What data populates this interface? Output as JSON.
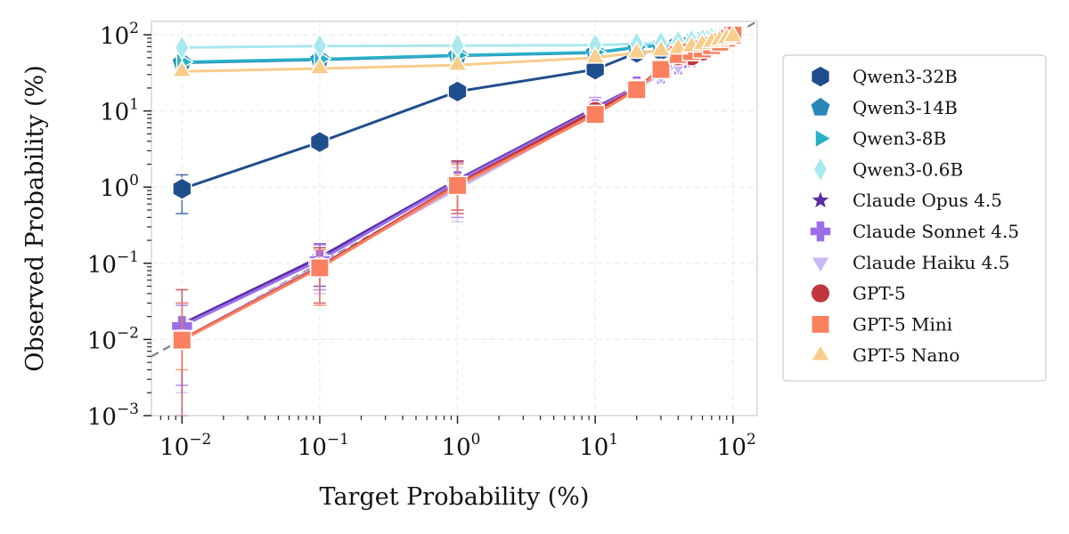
{
  "chart_data": {
    "type": "line",
    "xlabel": "Target Probability (%)",
    "ylabel": "Observed Probability (%)",
    "x_scale": "log",
    "y_scale": "log",
    "xlim": [
      0.006,
      150
    ],
    "ylim": [
      0.001,
      150
    ],
    "x_ticks": [
      {
        "base": "10",
        "exp": "−2",
        "value": 0.01
      },
      {
        "base": "10",
        "exp": "−1",
        "value": 0.1
      },
      {
        "base": "10",
        "exp": "0",
        "value": 1
      },
      {
        "base": "10",
        "exp": "1",
        "value": 10
      },
      {
        "base": "10",
        "exp": "2",
        "value": 100
      }
    ],
    "y_ticks": [
      {
        "base": "10",
        "exp": "−3",
        "value": 0.001
      },
      {
        "base": "10",
        "exp": "−2",
        "value": 0.01
      },
      {
        "base": "10",
        "exp": "−1",
        "value": 0.1
      },
      {
        "base": "10",
        "exp": "0",
        "value": 1
      },
      {
        "base": "10",
        "exp": "1",
        "value": 10
      },
      {
        "base": "10",
        "exp": "2",
        "value": 100
      }
    ],
    "grid": true,
    "legend_position": "outside-right",
    "reference_line": "y = x (dashed gray)",
    "x": [
      0.01,
      0.1,
      1,
      10,
      20,
      30,
      40,
      50,
      60,
      70,
      80,
      90,
      100
    ],
    "series": [
      {
        "name": "Qwen3-32B",
        "marker": "hexagon",
        "color": "#1f4e8c",
        "values": [
          0.95,
          3.9,
          18,
          35,
          58,
          62,
          70,
          75,
          80,
          84,
          88,
          92,
          97
        ],
        "err_low": [
          0.45,
          3.7,
          17,
          33,
          56,
          60,
          68,
          73,
          78,
          82,
          86,
          90,
          95
        ],
        "err_high": [
          1.45,
          4.1,
          19,
          37,
          60,
          64,
          72,
          77,
          82,
          86,
          90,
          94,
          99
        ]
      },
      {
        "name": "Qwen3-14B",
        "marker": "pentagon",
        "color": "#2b86b8",
        "values": [
          43,
          47,
          53,
          58,
          68,
          72,
          76,
          80,
          84,
          87,
          90,
          93,
          97
        ]
      },
      {
        "name": "Qwen3-8B",
        "marker": "triangle-right",
        "color": "#27b1c6",
        "values": [
          44,
          48,
          54,
          59,
          69,
          73,
          77,
          81,
          85,
          88,
          91,
          94,
          97
        ]
      },
      {
        "name": "Qwen3-0.6B",
        "marker": "thin-diamond",
        "color": "#a9e8ef",
        "values": [
          68,
          71,
          72,
          73,
          76,
          78,
          80,
          82,
          85,
          88,
          91,
          94,
          97
        ]
      },
      {
        "name": "Claude Opus 4.5",
        "marker": "star",
        "color": "#5a2ea6",
        "values": [
          0.016,
          0.12,
          1.25,
          11,
          21,
          32,
          42,
          52,
          62,
          72,
          82,
          91,
          99
        ],
        "err_low": [
          0.009,
          0.05,
          0.45,
          9.5,
          19,
          30,
          40,
          50,
          60,
          70,
          80,
          89,
          97
        ],
        "err_high": [
          0.03,
          0.18,
          2.2,
          13,
          23,
          34,
          44,
          54,
          64,
          74,
          84,
          93,
          100
        ]
      },
      {
        "name": "Claude Sonnet 4.5",
        "marker": "plus",
        "color": "#9b6ee8",
        "values": [
          0.015,
          0.11,
          1.2,
          10.5,
          21,
          31,
          41,
          51,
          61,
          71,
          81,
          90,
          99
        ],
        "err_low": [
          0.0025,
          0.045,
          0.4,
          9,
          19,
          29,
          39,
          49,
          59,
          69,
          79,
          88,
          97
        ],
        "err_high": [
          0.028,
          0.175,
          2.1,
          15,
          23,
          33,
          43,
          53,
          63,
          73,
          83,
          92,
          100
        ]
      },
      {
        "name": "Claude Haiku 4.5",
        "marker": "triangle-down",
        "color": "#c7b8f5",
        "values": [
          0.01,
          0.095,
          0.95,
          9.5,
          20,
          30,
          40,
          50,
          60,
          70,
          80,
          90,
          99
        ],
        "err_low": [
          0.002,
          0.04,
          0.35,
          8,
          18,
          28,
          38,
          48,
          58,
          68,
          78,
          88,
          97
        ],
        "err_high": [
          0.03,
          0.16,
          1.8,
          12,
          22,
          32,
          42,
          52,
          62,
          72,
          82,
          92,
          100
        ]
      },
      {
        "name": "GPT-5",
        "marker": "circle",
        "color": "#c0363e",
        "values": [
          0.01,
          0.09,
          1.1,
          10,
          19.5,
          36,
          52,
          52,
          60,
          70,
          80,
          90,
          99
        ],
        "err_low": [
          0.001,
          0.03,
          0.5,
          8.5,
          18,
          34,
          50,
          50,
          58,
          68,
          78,
          88,
          97
        ],
        "err_high": [
          0.045,
          0.16,
          2.2,
          12,
          21,
          38,
          54,
          54,
          62,
          72,
          82,
          92,
          100
        ]
      },
      {
        "name": "GPT-5 Mini",
        "marker": "square",
        "color": "#fa8060",
        "values": [
          0.0098,
          0.087,
          1.05,
          9,
          19,
          35,
          55,
          60,
          65,
          72,
          80,
          90,
          99
        ],
        "err_low": [
          0.004,
          0.028,
          0.45,
          7.5,
          17,
          33,
          53,
          58,
          63,
          70,
          78,
          88,
          97
        ],
        "err_high": [
          0.03,
          0.15,
          2.0,
          11,
          21,
          37,
          57,
          62,
          67,
          74,
          82,
          92,
          100
        ]
      },
      {
        "name": "GPT-5 Nano",
        "marker": "triangle-up",
        "color": "#f8cc8a",
        "values": [
          33,
          36,
          40,
          50,
          58,
          62,
          66,
          70,
          75,
          80,
          85,
          90,
          95
        ]
      }
    ]
  }
}
